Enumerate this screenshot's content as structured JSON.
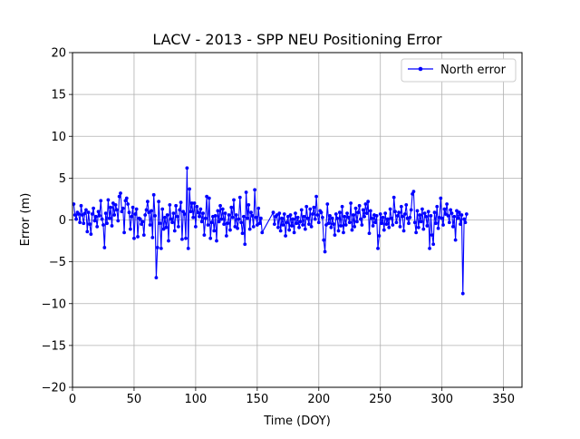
{
  "chart_data": {
    "type": "line",
    "title": "LACV - 2013 - SPP NEU Positioning Error",
    "xlabel": "Time (DOY)",
    "ylabel": "Error (m)",
    "xlim": [
      0,
      365
    ],
    "ylim": [
      -20,
      20
    ],
    "xticks": [
      0,
      50,
      100,
      150,
      200,
      250,
      300,
      350
    ],
    "yticks": [
      -20,
      -15,
      -10,
      -5,
      0,
      5,
      10,
      15,
      20
    ],
    "grid": true,
    "legend_position": "top-right",
    "series": [
      {
        "name": "North error",
        "color": "#0000ff",
        "marker": "circle",
        "points": [
          [
            1,
            1.9
          ],
          [
            2,
            0.6
          ],
          [
            3,
            0.1
          ],
          [
            4,
            0.9
          ],
          [
            5,
            0.7
          ],
          [
            6,
            -0.3
          ],
          [
            7,
            1.7
          ],
          [
            8,
            0.6
          ],
          [
            9,
            -0.4
          ],
          [
            10,
            0.8
          ],
          [
            11,
            1.2
          ],
          [
            12,
            -1.4
          ],
          [
            13,
            0.9
          ],
          [
            14,
            -0.5
          ],
          [
            15,
            -1.7
          ],
          [
            16,
            0.7
          ],
          [
            17,
            1.4
          ],
          [
            18,
            -0.1
          ],
          [
            19,
            0.4
          ],
          [
            20,
            -0.8
          ],
          [
            21,
            1.0
          ],
          [
            22,
            0.5
          ],
          [
            23,
            2.3
          ],
          [
            24,
            0.1
          ],
          [
            25,
            -0.6
          ],
          [
            26,
            -3.3
          ],
          [
            27,
            0.8
          ],
          [
            28,
            -0.4
          ],
          [
            29,
            2.4
          ],
          [
            30,
            0.2
          ],
          [
            31,
            1.5
          ],
          [
            32,
            -0.7
          ],
          [
            33,
            2.0
          ],
          [
            34,
            0.6
          ],
          [
            35,
            1.8
          ],
          [
            36,
            1.2
          ],
          [
            37,
            -0.1
          ],
          [
            38,
            2.8
          ],
          [
            39,
            3.2
          ],
          [
            40,
            1.0
          ],
          [
            41,
            1.4
          ],
          [
            42,
            -1.5
          ],
          [
            43,
            2.3
          ],
          [
            44,
            2.6
          ],
          [
            45,
            1.9
          ],
          [
            46,
            0.9
          ],
          [
            47,
            -1.1
          ],
          [
            48,
            0.4
          ],
          [
            49,
            1.5
          ],
          [
            50,
            -2.2
          ],
          [
            51,
            0.7
          ],
          [
            52,
            1.3
          ],
          [
            53,
            -2.0
          ],
          [
            54,
            0.2
          ],
          [
            55,
            0.1
          ],
          [
            56,
            -0.5
          ],
          [
            57,
            -0.2
          ],
          [
            58,
            -1.8
          ],
          [
            59,
            0.6
          ],
          [
            60,
            1.2
          ],
          [
            61,
            2.2
          ],
          [
            62,
            0.9
          ],
          [
            63,
            -0.6
          ],
          [
            64,
            1.1
          ],
          [
            65,
            -2.1
          ],
          [
            66,
            3.0
          ],
          [
            67,
            0.5
          ],
          [
            68,
            -6.9
          ],
          [
            69,
            -3.3
          ],
          [
            70,
            2.2
          ],
          [
            71,
            -0.4
          ],
          [
            72,
            -3.4
          ],
          [
            73,
            1.3
          ],
          [
            74,
            -1.1
          ],
          [
            75,
            0.3
          ],
          [
            76,
            -0.9
          ],
          [
            77,
            0.6
          ],
          [
            78,
            -2.5
          ],
          [
            79,
            1.8
          ],
          [
            80,
            0.1
          ],
          [
            81,
            -0.3
          ],
          [
            82,
            0.8
          ],
          [
            83,
            -1.3
          ],
          [
            84,
            1.7
          ],
          [
            85,
            0.4
          ],
          [
            86,
            -0.8
          ],
          [
            87,
            1.2
          ],
          [
            88,
            2.1
          ],
          [
            89,
            -2.3
          ],
          [
            90,
            1.0
          ],
          [
            91,
            0.7
          ],
          [
            92,
            -2.2
          ],
          [
            93,
            6.2
          ],
          [
            94,
            -3.4
          ],
          [
            95,
            3.7
          ],
          [
            96,
            1.0
          ],
          [
            97,
            2.0
          ],
          [
            98,
            0.3
          ],
          [
            99,
            2.0
          ],
          [
            100,
            -0.8
          ],
          [
            101,
            1.6
          ],
          [
            102,
            0.9
          ],
          [
            103,
            0.4
          ],
          [
            104,
            1.3
          ],
          [
            105,
            -0.2
          ],
          [
            106,
            0.8
          ],
          [
            107,
            -1.8
          ],
          [
            108,
            0.2
          ],
          [
            109,
            2.8
          ],
          [
            110,
            -0.6
          ],
          [
            111,
            2.6
          ],
          [
            112,
            -2.2
          ],
          [
            113,
            -0.3
          ],
          [
            114,
            0.4
          ],
          [
            115,
            -1.3
          ],
          [
            116,
            0.5
          ],
          [
            117,
            -2.5
          ],
          [
            118,
            1.1
          ],
          [
            119,
            -0.2
          ],
          [
            120,
            1.7
          ],
          [
            121,
            0.1
          ],
          [
            122,
            1.3
          ],
          [
            123,
            -0.5
          ],
          [
            124,
            0.8
          ],
          [
            125,
            -1.9
          ],
          [
            126,
            -0.4
          ],
          [
            127,
            0.6
          ],
          [
            128,
            -1.2
          ],
          [
            129,
            1.5
          ],
          [
            130,
            0.3
          ],
          [
            131,
            2.4
          ],
          [
            132,
            -0.8
          ],
          [
            133,
            0.6
          ],
          [
            134,
            -1.0
          ],
          [
            135,
            0.1
          ],
          [
            136,
            2.7
          ],
          [
            137,
            -0.3
          ],
          [
            138,
            -1.6
          ],
          [
            139,
            0.4
          ],
          [
            140,
            -2.9
          ],
          [
            141,
            3.3
          ],
          [
            142,
            0.2
          ],
          [
            143,
            1.8
          ],
          [
            144,
            -1.1
          ],
          [
            145,
            0.9
          ],
          [
            146,
            0.5
          ],
          [
            147,
            -0.8
          ],
          [
            148,
            3.6
          ],
          [
            149,
            0.3
          ],
          [
            150,
            -0.6
          ],
          [
            151,
            1.4
          ],
          [
            152,
            -0.4
          ],
          [
            153,
            0.2
          ],
          [
            154,
            -1.5
          ],
          [
            163,
            0.9
          ],
          [
            164,
            -0.5
          ],
          [
            165,
            0.4
          ],
          [
            166,
            0.6
          ],
          [
            167,
            -0.9
          ],
          [
            168,
            0.8
          ],
          [
            169,
            -1.3
          ],
          [
            170,
            0.2
          ],
          [
            171,
            -0.6
          ],
          [
            172,
            0.7
          ],
          [
            173,
            -1.9
          ],
          [
            174,
            -0.3
          ],
          [
            175,
            0.4
          ],
          [
            176,
            -1.2
          ],
          [
            177,
            0.6
          ],
          [
            178,
            -0.7
          ],
          [
            179,
            0.1
          ],
          [
            180,
            -1.5
          ],
          [
            181,
            0.8
          ],
          [
            182,
            -0.4
          ],
          [
            183,
            0.3
          ],
          [
            184,
            -0.9
          ],
          [
            185,
            -0.2
          ],
          [
            186,
            1.2
          ],
          [
            187,
            -0.6
          ],
          [
            188,
            0.4
          ],
          [
            189,
            -1.1
          ],
          [
            190,
            1.6
          ],
          [
            191,
            0.2
          ],
          [
            192,
            -0.5
          ],
          [
            193,
            1.3
          ],
          [
            194,
            -0.8
          ],
          [
            195,
            0.7
          ],
          [
            196,
            1.5
          ],
          [
            197,
            0.1
          ],
          [
            198,
            2.8
          ],
          [
            199,
            0.6
          ],
          [
            200,
            -0.3
          ],
          [
            201,
            1.1
          ],
          [
            202,
            0.9
          ],
          [
            203,
            0.3
          ],
          [
            204,
            -2.4
          ],
          [
            205,
            -3.8
          ],
          [
            206,
            -0.6
          ],
          [
            207,
            1.9
          ],
          [
            208,
            -0.4
          ],
          [
            209,
            0.5
          ],
          [
            210,
            -0.9
          ],
          [
            211,
            0.2
          ],
          [
            212,
            -0.5
          ],
          [
            213,
            -1.8
          ],
          [
            214,
            0.7
          ],
          [
            215,
            0.2
          ],
          [
            216,
            -1.3
          ],
          [
            217,
            0.9
          ],
          [
            218,
            -0.7
          ],
          [
            219,
            1.6
          ],
          [
            220,
            -1.5
          ],
          [
            221,
            0.4
          ],
          [
            222,
            -0.6
          ],
          [
            223,
            0.8
          ],
          [
            224,
            0.3
          ],
          [
            225,
            -0.3
          ],
          [
            226,
            2.0
          ],
          [
            227,
            -1.2
          ],
          [
            228,
            0.6
          ],
          [
            229,
            -0.8
          ],
          [
            230,
            1.4
          ],
          [
            231,
            -0.2
          ],
          [
            232,
            0.9
          ],
          [
            233,
            1.7
          ],
          [
            234,
            0.1
          ],
          [
            235,
            -0.6
          ],
          [
            236,
            1.2
          ],
          [
            237,
            0.4
          ],
          [
            238,
            1.9
          ],
          [
            239,
            0.8
          ],
          [
            240,
            2.2
          ],
          [
            241,
            -1.6
          ],
          [
            242,
            1.1
          ],
          [
            243,
            0.2
          ],
          [
            244,
            -0.7
          ],
          [
            245,
            0.6
          ],
          [
            246,
            -0.3
          ],
          [
            247,
            0.5
          ],
          [
            248,
            -3.4
          ],
          [
            249,
            -1.9
          ],
          [
            250,
            0.7
          ],
          [
            251,
            -0.4
          ],
          [
            252,
            0.3
          ],
          [
            253,
            -1.2
          ],
          [
            254,
            0.8
          ],
          [
            255,
            -0.5
          ],
          [
            256,
            0.1
          ],
          [
            257,
            -0.9
          ],
          [
            258,
            1.3
          ],
          [
            259,
            0.2
          ],
          [
            260,
            -0.6
          ],
          [
            261,
            2.7
          ],
          [
            262,
            1.0
          ],
          [
            263,
            -0.3
          ],
          [
            264,
            0.5
          ],
          [
            265,
            0.9
          ],
          [
            266,
            -0.8
          ],
          [
            267,
            1.6
          ],
          [
            268,
            0.4
          ],
          [
            269,
            -1.3
          ],
          [
            270,
            0.7
          ],
          [
            271,
            1.8
          ],
          [
            272,
            0.2
          ],
          [
            273,
            -0.4
          ],
          [
            274,
            0.3
          ],
          [
            275,
            1.2
          ],
          [
            276,
            3.1
          ],
          [
            277,
            3.4
          ],
          [
            278,
            -0.3
          ],
          [
            279,
            -1.5
          ],
          [
            280,
            1.1
          ],
          [
            281,
            -0.9
          ],
          [
            282,
            0.6
          ],
          [
            283,
            -0.2
          ],
          [
            284,
            1.3
          ],
          [
            285,
            -1.1
          ],
          [
            286,
            0.8
          ],
          [
            287,
            0.4
          ],
          [
            288,
            -0.7
          ],
          [
            289,
            1.0
          ],
          [
            290,
            -3.4
          ],
          [
            291,
            0.5
          ],
          [
            292,
            -1.8
          ],
          [
            293,
            -2.9
          ],
          [
            294,
            0.9
          ],
          [
            295,
            -0.4
          ],
          [
            296,
            1.6
          ],
          [
            297,
            -1.0
          ],
          [
            298,
            0.3
          ],
          [
            299,
            2.6
          ],
          [
            300,
            0.2
          ],
          [
            301,
            -0.6
          ],
          [
            302,
            1.3
          ],
          [
            303,
            0.7
          ],
          [
            304,
            1.9
          ],
          [
            305,
            0.5
          ],
          [
            306,
            -0.3
          ],
          [
            307,
            1.2
          ],
          [
            308,
            0.8
          ],
          [
            309,
            -0.8
          ],
          [
            310,
            0.4
          ],
          [
            311,
            -2.4
          ],
          [
            312,
            1.1
          ],
          [
            313,
            0.2
          ],
          [
            314,
            0.9
          ],
          [
            315,
            -0.5
          ],
          [
            316,
            0.6
          ],
          [
            317,
            -8.8
          ],
          [
            318,
            0.1
          ],
          [
            319,
            -0.3
          ],
          [
            320,
            0.7
          ]
        ]
      }
    ]
  }
}
